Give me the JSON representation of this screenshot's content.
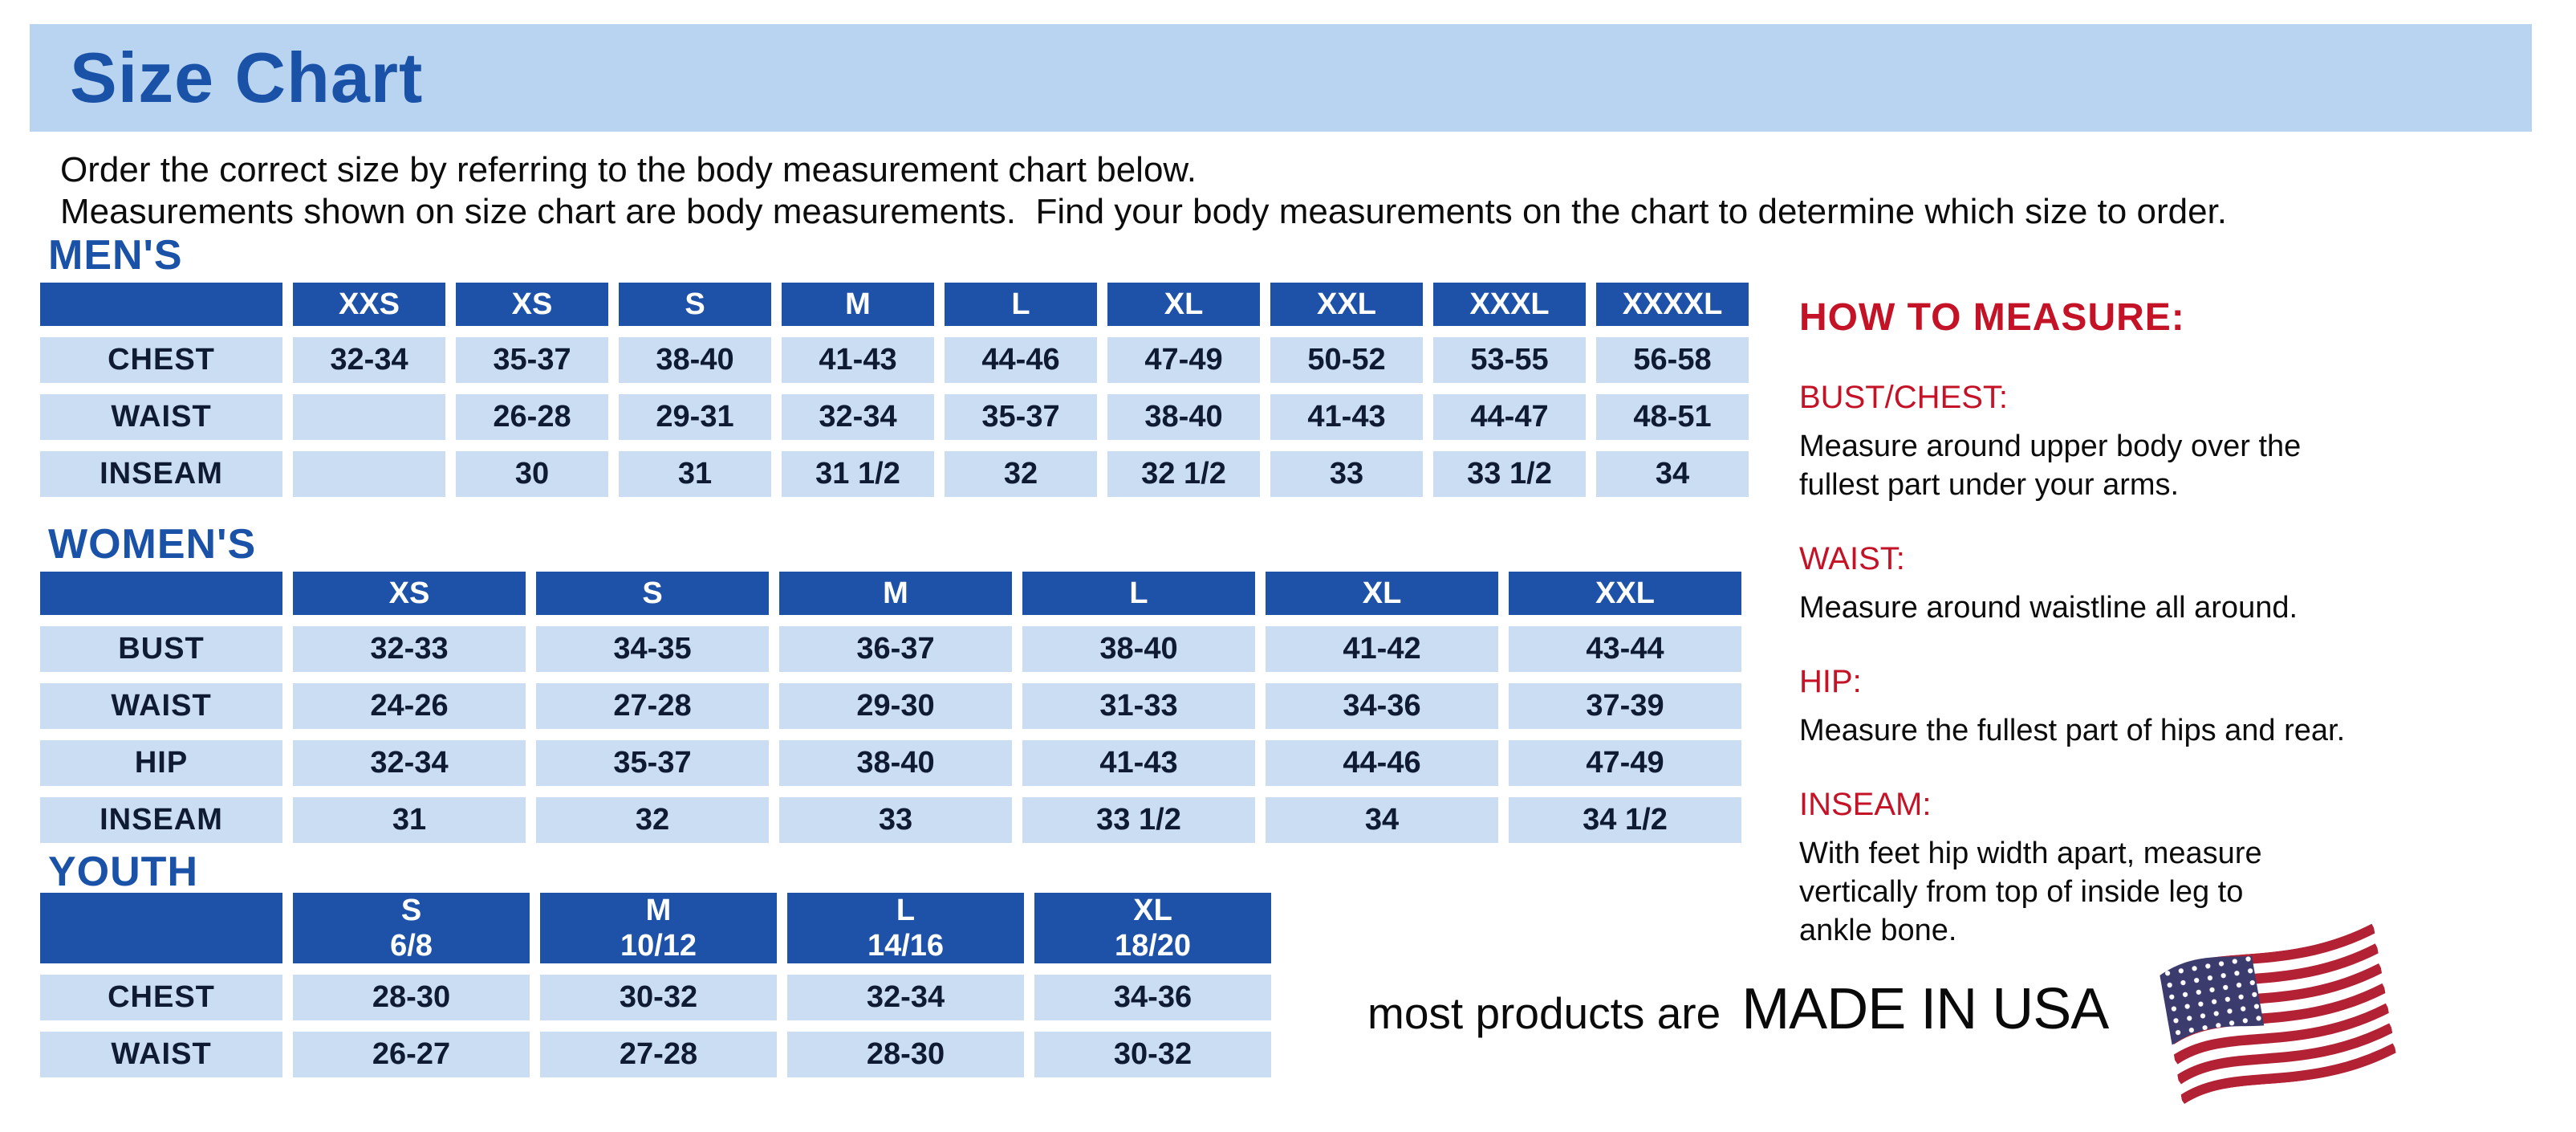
{
  "banner": {
    "title": "Size Chart"
  },
  "intro": {
    "line1": "Order the correct size by referring to the body measurement chart below.",
    "line2": "Measurements shown on size chart are body measurements.  Find your body measurements on the chart to determine which size to order."
  },
  "colors": {
    "banner_bg": "#b9d4f1",
    "title_blue": "#1a52a8",
    "header_blue": "#1e52a8",
    "cell_blue": "#cbddf2",
    "cell_text": "#0e1b33",
    "red": "#c41227",
    "flag_red": "#b22234",
    "flag_blue": "#3c3b6e"
  },
  "tables": [
    {
      "id": "mens",
      "title": "MEN'S",
      "columns": [
        "",
        "XXS",
        "XS",
        "S",
        "M",
        "L",
        "XL",
        "XXL",
        "XXXL",
        "XXXXL"
      ],
      "rows": [
        {
          "label": "CHEST",
          "values": [
            "32-34",
            "35-37",
            "38-40",
            "41-43",
            "44-46",
            "47-49",
            "50-52",
            "53-55",
            "56-58"
          ]
        },
        {
          "label": "WAIST",
          "values": [
            "",
            "26-28",
            "29-31",
            "32-34",
            "35-37",
            "38-40",
            "41-43",
            "44-47",
            "48-51"
          ]
        },
        {
          "label": "INSEAM",
          "values": [
            "",
            "30",
            "31",
            "31 1/2",
            "32",
            "32 1/2",
            "33",
            "33 1/2",
            "34"
          ]
        }
      ]
    },
    {
      "id": "womens",
      "title": "WOMEN'S",
      "columns": [
        "",
        "XS",
        "S",
        "M",
        "L",
        "XL",
        "XXL"
      ],
      "rows": [
        {
          "label": "BUST",
          "values": [
            "32-33",
            "34-35",
            "36-37",
            "38-40",
            "41-42",
            "43-44"
          ]
        },
        {
          "label": "WAIST",
          "values": [
            "24-26",
            "27-28",
            "29-30",
            "31-33",
            "34-36",
            "37-39"
          ]
        },
        {
          "label": "HIP",
          "values": [
            "32-34",
            "35-37",
            "38-40",
            "41-43",
            "44-46",
            "47-49"
          ]
        },
        {
          "label": "INSEAM",
          "values": [
            "31",
            "32",
            "33",
            "33 1/2",
            "34",
            "34 1/2"
          ]
        }
      ]
    },
    {
      "id": "youth",
      "title": "YOUTH",
      "columns": [
        "",
        "S\n6/8",
        "M\n10/12",
        "L\n14/16",
        "XL\n18/20"
      ],
      "rows": [
        {
          "label": "CHEST",
          "values": [
            "28-30",
            "30-32",
            "32-34",
            "34-36"
          ]
        },
        {
          "label": "WAIST",
          "values": [
            "26-27",
            "27-28",
            "28-30",
            "30-32"
          ]
        }
      ]
    }
  ],
  "how_to_measure": {
    "title": "HOW TO MEASURE:",
    "items": [
      {
        "heading": "BUST/CHEST:",
        "text": "Measure around upper body over the\nfullest part under your arms."
      },
      {
        "heading": "WAIST:",
        "text": "Measure around waistline all around."
      },
      {
        "heading": "HIP:",
        "text": "Measure the fullest part of hips and rear."
      },
      {
        "heading": "INSEAM:",
        "text": "With feet hip width apart, measure\nvertically from top of inside leg to\nankle bone."
      }
    ]
  },
  "footer": {
    "prefix": "most products are",
    "made_in": "MADE IN USA",
    "flag_icon": "us-flag-icon"
  }
}
